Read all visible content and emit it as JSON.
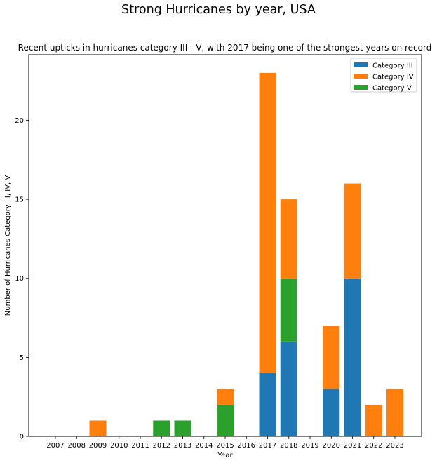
{
  "chart_data": {
    "type": "bar",
    "stacked": true,
    "suptitle": "Strong Hurricanes by year, USA",
    "title": "Recent upticks in hurricanes category III - V, with 2017 being one of the strongest years on record",
    "xlabel": "Year",
    "ylabel": "Number of Hurricanes Category III, IV, V",
    "categories": [
      "2007",
      "2008",
      "2009",
      "2010",
      "2011",
      "2012",
      "2013",
      "2014",
      "2015",
      "2016",
      "2017",
      "2018",
      "2019",
      "2020",
      "2021",
      "2022",
      "2023"
    ],
    "ylim": [
      0,
      24.15
    ],
    "yticks": [
      0,
      5,
      10,
      15,
      20
    ],
    "grid": false,
    "legend_position": "top-right",
    "series": [
      {
        "name": "Category III",
        "color": "#1f77b4",
        "values": [
          0,
          0,
          0,
          0,
          0,
          0,
          0,
          0,
          0,
          0,
          4,
          6,
          0,
          3,
          10,
          0,
          0
        ]
      },
      {
        "name": "Category IV",
        "color": "#ff7f0e",
        "values": [
          0,
          0,
          1,
          0,
          0,
          0,
          0,
          0,
          1,
          0,
          19,
          5,
          0,
          4,
          6,
          2,
          3
        ]
      },
      {
        "name": "Category V",
        "color": "#2ca02c",
        "values": [
          0,
          0,
          0,
          0,
          0,
          1,
          1,
          0,
          2,
          0,
          0,
          4,
          0,
          0,
          0,
          0,
          0
        ]
      }
    ],
    "stack_order": [
      "Category III",
      "Category V",
      "Category IV"
    ]
  }
}
